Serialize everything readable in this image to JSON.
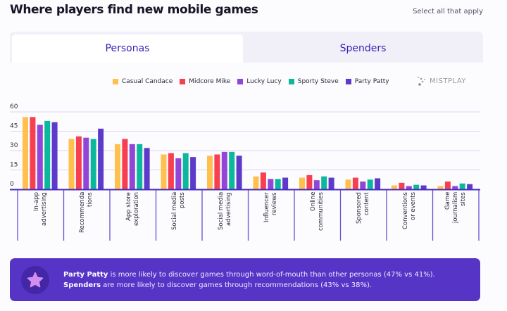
{
  "header": {
    "title": "Where players find new mobile games",
    "note": "Select all that apply"
  },
  "tabs": [
    {
      "label": "Personas",
      "active": true
    },
    {
      "label": "Spenders",
      "active": false
    }
  ],
  "logo": {
    "text": "MISTPLAY"
  },
  "colors": {
    "Casual Candace": "#FFC04D",
    "Midcore Mike": "#F7404F",
    "Lucky Lucy": "#9146D8",
    "Sporty Steve": "#0BB89E",
    "Party Patty": "#5C3BCB",
    "banner": "#5634C6"
  },
  "chart_data": {
    "type": "bar",
    "ylim": [
      0,
      60
    ],
    "yticks": [
      "0",
      "15",
      "30",
      "45",
      "60"
    ],
    "grid": true,
    "legend_placement": "top",
    "categories": [
      "In-app\nadvertising",
      "Recommenda\ntions",
      "App store\nexploration",
      "Social media\nposts",
      "Social media\nadvertising",
      "Influencer\nreviews",
      "Online\ncommunities",
      "Sponsored\ncontent",
      "Conventions\nor events",
      "Game\njournalism\nsites"
    ],
    "series": [
      {
        "name": "Casual Candace",
        "values": [
          56,
          39,
          35,
          27,
          26,
          10,
          9,
          7.5,
          3,
          2.5
        ]
      },
      {
        "name": "Midcore Mike",
        "values": [
          56,
          41,
          39,
          28,
          27,
          13,
          11,
          9,
          5,
          6
        ]
      },
      {
        "name": "Lucky Lucy",
        "values": [
          50,
          40,
          35,
          24,
          29,
          8,
          7,
          6,
          2.5,
          2.5
        ]
      },
      {
        "name": "Sporty Steve",
        "values": [
          53,
          39,
          35,
          28,
          29,
          8,
          10,
          7.5,
          3.5,
          4.5
        ]
      },
      {
        "name": "Party Patty",
        "values": [
          52,
          47,
          32,
          25,
          26,
          9,
          9,
          8.5,
          3,
          4
        ]
      }
    ]
  },
  "banner": {
    "line1_bold": "Party Patty",
    "line1": " is more likely to discover games through word-of-mouth than other personas (47% vs 41%).",
    "line2_bold": "Spenders",
    "line2": " are more likely to discover games through recommendations (43% vs 38%).",
    "icon": "star-icon"
  }
}
